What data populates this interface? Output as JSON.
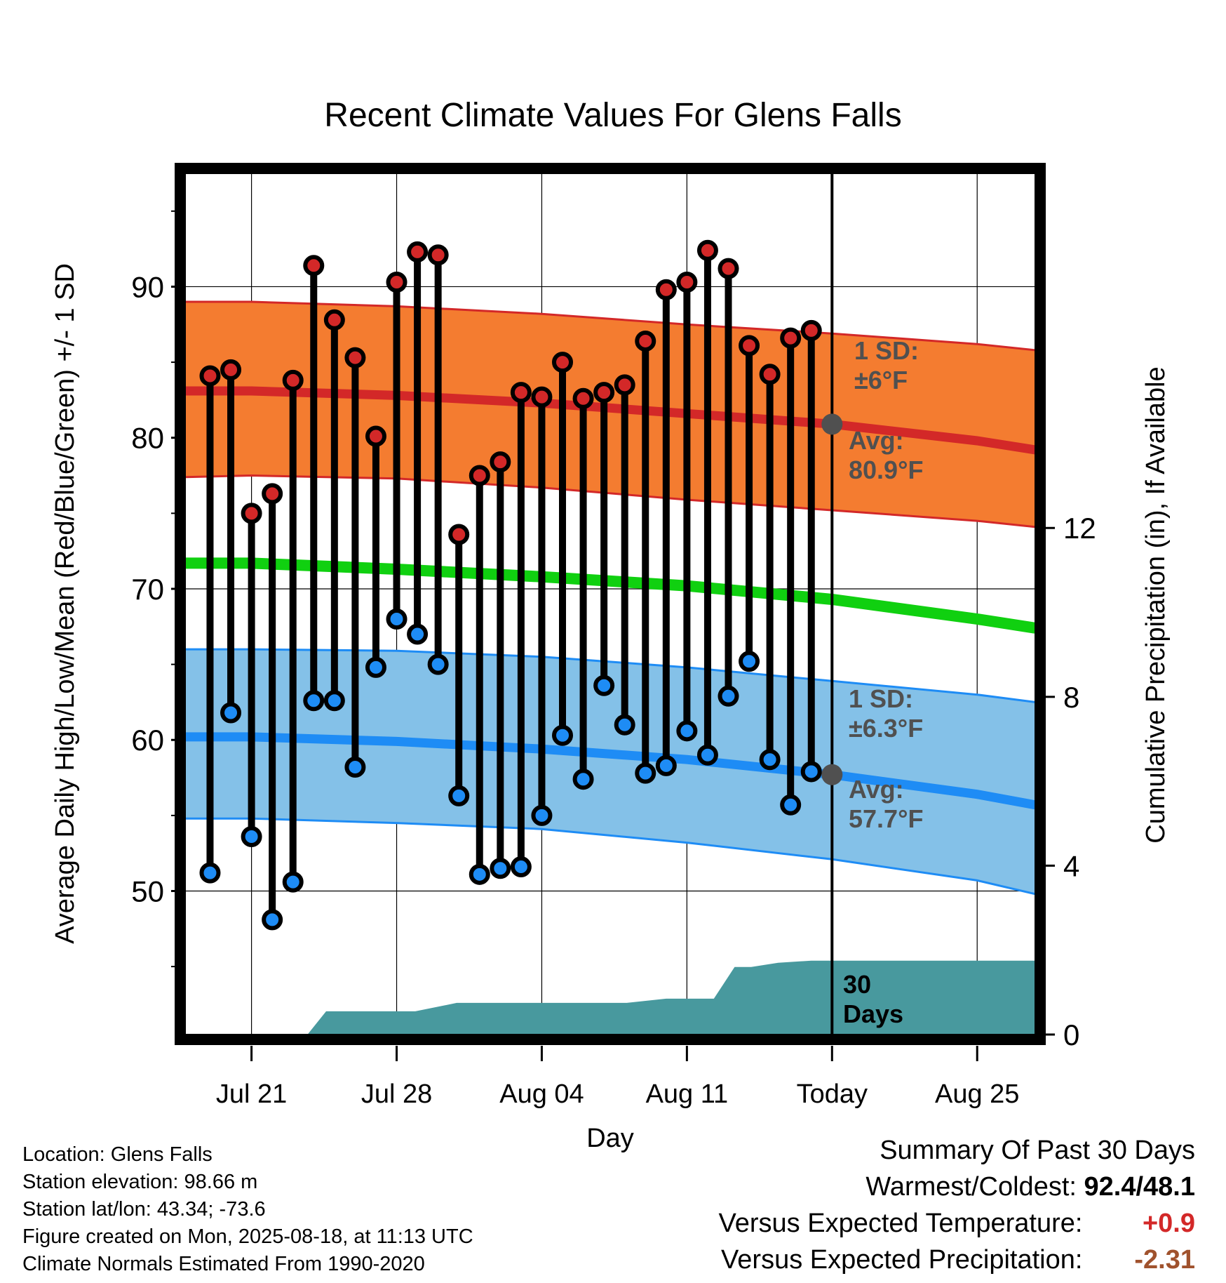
{
  "chart_data": {
    "type": "line",
    "title": "Recent Climate Values For Glens Falls",
    "xlabel": "Day",
    "ylabel_left": "Average Daily High/Low/Mean (Red/Blue/Green) +/- 1 SD",
    "ylabel_right": "Cumulative Precipitation (in), If Available",
    "x_ticks": [
      {
        "day": 0,
        "label": "Jul 21"
      },
      {
        "day": 7,
        "label": "Jul 28"
      },
      {
        "day": 14,
        "label": "Aug 04"
      },
      {
        "day": 21,
        "label": "Aug 11"
      },
      {
        "day": 28,
        "label": "Today"
      },
      {
        "day": 35,
        "label": "Aug 25"
      }
    ],
    "x_note": "day 0 = Jul 21 (2025); Today = Aug 18",
    "xlim": [
      -3.2,
      37.8
    ],
    "ylim_left": [
      40.5,
      97.5
    ],
    "y_ticks_left": [
      50,
      60,
      70,
      80,
      90
    ],
    "ylim_right": [
      0,
      20.4
    ],
    "y_ticks_right": [
      0,
      4,
      8,
      12
    ],
    "grid": true,
    "daily_high": [
      {
        "day": -2,
        "value": 84.1
      },
      {
        "day": -1,
        "value": 84.5
      },
      {
        "day": 0,
        "value": 75.0
      },
      {
        "day": 1,
        "value": 76.3
      },
      {
        "day": 2,
        "value": 83.8
      },
      {
        "day": 3,
        "value": 91.4
      },
      {
        "day": 4,
        "value": 87.8
      },
      {
        "day": 5,
        "value": 85.3
      },
      {
        "day": 6,
        "value": 80.1
      },
      {
        "day": 7,
        "value": 90.3
      },
      {
        "day": 8,
        "value": 92.3
      },
      {
        "day": 9,
        "value": 92.1
      },
      {
        "day": 10,
        "value": 73.6
      },
      {
        "day": 11,
        "value": 77.5
      },
      {
        "day": 12,
        "value": 78.4
      },
      {
        "day": 13,
        "value": 83.0
      },
      {
        "day": 14,
        "value": 82.7
      },
      {
        "day": 15,
        "value": 85.0
      },
      {
        "day": 16,
        "value": 82.6
      },
      {
        "day": 17,
        "value": 83.0
      },
      {
        "day": 18,
        "value": 83.5
      },
      {
        "day": 19,
        "value": 86.4
      },
      {
        "day": 20,
        "value": 89.8
      },
      {
        "day": 21,
        "value": 90.3
      },
      {
        "day": 22,
        "value": 92.4
      },
      {
        "day": 23,
        "value": 91.2
      },
      {
        "day": 24,
        "value": 86.1
      },
      {
        "day": 25,
        "value": 84.2
      },
      {
        "day": 26,
        "value": 86.6
      },
      {
        "day": 27,
        "value": 87.1
      }
    ],
    "daily_low": [
      {
        "day": -2,
        "value": 51.2
      },
      {
        "day": -1,
        "value": 61.8
      },
      {
        "day": 0,
        "value": 53.6
      },
      {
        "day": 1,
        "value": 48.1
      },
      {
        "day": 2,
        "value": 50.6
      },
      {
        "day": 3,
        "value": 62.6
      },
      {
        "day": 4,
        "value": 62.6
      },
      {
        "day": 5,
        "value": 58.2
      },
      {
        "day": 6,
        "value": 64.8
      },
      {
        "day": 7,
        "value": 68.0
      },
      {
        "day": 8,
        "value": 67.0
      },
      {
        "day": 9,
        "value": 65.0
      },
      {
        "day": 10,
        "value": 56.3
      },
      {
        "day": 11,
        "value": 51.1
      },
      {
        "day": 12,
        "value": 51.5
      },
      {
        "day": 13,
        "value": 51.6
      },
      {
        "day": 14,
        "value": 55.0
      },
      {
        "day": 15,
        "value": 60.3
      },
      {
        "day": 16,
        "value": 57.4
      },
      {
        "day": 17,
        "value": 63.6
      },
      {
        "day": 18,
        "value": 61.0
      },
      {
        "day": 19,
        "value": 57.8
      },
      {
        "day": 20,
        "value": 58.3
      },
      {
        "day": 21,
        "value": 60.6
      },
      {
        "day": 22,
        "value": 59.0
      },
      {
        "day": 23,
        "value": 62.9
      },
      {
        "day": 24,
        "value": 65.2
      },
      {
        "day": 25,
        "value": 58.7
      },
      {
        "day": 26,
        "value": 55.7
      },
      {
        "day": 27,
        "value": 57.9
      }
    ],
    "normals": {
      "days": [
        -3.2,
        0,
        7,
        14,
        21,
        28,
        35,
        37.8
      ],
      "high_avg": [
        83.1,
        83.1,
        82.8,
        82.3,
        81.6,
        80.9,
        79.8,
        79.2
      ],
      "high_upper": [
        89.0,
        89.0,
        88.7,
        88.2,
        87.5,
        86.9,
        86.2,
        85.8
      ],
      "high_lower": [
        77.4,
        77.5,
        77.3,
        76.7,
        75.9,
        75.2,
        74.5,
        74.1
      ],
      "mean_avg": [
        71.7,
        71.7,
        71.3,
        70.8,
        70.2,
        69.3,
        68.0,
        67.4
      ],
      "low_avg": [
        60.2,
        60.2,
        59.9,
        59.4,
        58.7,
        57.7,
        56.4,
        55.7
      ],
      "low_upper": [
        66.0,
        66.0,
        65.9,
        65.5,
        64.8,
        63.9,
        63.0,
        62.5
      ],
      "low_lower": [
        54.8,
        54.8,
        54.5,
        54.1,
        53.2,
        52.1,
        50.7,
        49.8
      ]
    },
    "today_markers": [
      {
        "series": "high",
        "day": 28,
        "value": 80.9
      },
      {
        "series": "low",
        "day": 28,
        "value": 57.7
      }
    ],
    "precipitation_cumulative": {
      "days": [
        2.7,
        3.6,
        6.0,
        7.9,
        9.9,
        11.1,
        18.1,
        20.0,
        22.3,
        23.3,
        24.1,
        25.4,
        27.0,
        28.0,
        37.8
      ],
      "values": [
        0.0,
        0.55,
        0.55,
        0.55,
        0.75,
        0.75,
        0.75,
        0.85,
        0.85,
        1.6,
        1.6,
        1.7,
        1.75,
        1.75,
        1.75
      ]
    },
    "annotations": {
      "high_sd": "1 SD:\n±6°F",
      "high_avg": "Avg:\n80.9°F",
      "low_sd": "1 SD:\n±6.3°F",
      "low_avg": "Avg:\n57.7°F",
      "days_label": "30\nDays"
    },
    "colors": {
      "high_band": "#f47c30",
      "high_line": "#d32828",
      "low_band": "#84c1e8",
      "low_line": "#1e8cf5",
      "mean_line": "#10d010",
      "precip": "#48999e",
      "today_marker": "#505050",
      "annotation_text": "#505050"
    }
  },
  "footer": {
    "location": "Location: Glens Falls",
    "elevation": "Station elevation: 98.66 m",
    "latlon": "Station lat/lon: 43.34; -73.6",
    "created": "Figure created on Mon, 2025-08-18, at 11:13 UTC",
    "normals": "Climate Normals Estimated From 1990-2020"
  },
  "summary": {
    "title": "Summary Of Past 30 Days",
    "warmest_label": "Warmest/Coldest:",
    "warmest_value": "92.4/48.1",
    "temp_label": "Versus Expected Temperature:",
    "temp_value": "+0.9",
    "temp_color": "#d32828",
    "precip_label": "Versus Expected Precipitation:",
    "precip_value": "-2.31",
    "precip_color": "#a0522d"
  }
}
